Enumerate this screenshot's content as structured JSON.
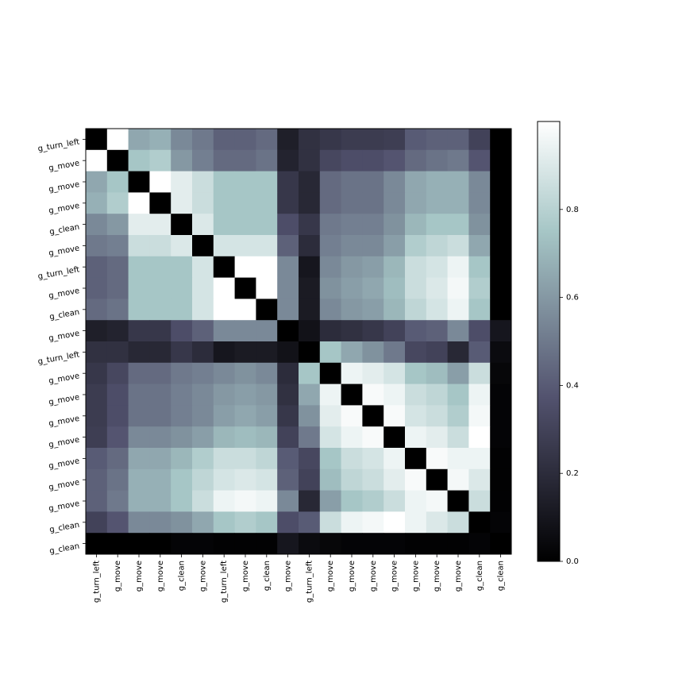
{
  "chart_data": {
    "type": "heatmap",
    "title": "",
    "xlabel": "",
    "ylabel": "",
    "colormap": "bone",
    "colorbar": {
      "min": 0.0,
      "max": 1.0,
      "ticks": [
        0.0,
        0.2,
        0.4,
        0.6,
        0.8
      ],
      "tick_labels": [
        "0.0",
        "0.2",
        "0.4",
        "0.6",
        "0.8"
      ]
    },
    "row_labels": [
      "g_turn_left",
      "g_move",
      "g_move",
      "g_move",
      "g_clean",
      "g_move",
      "g_turn_left",
      "g_move",
      "g_clean",
      "g_move",
      "g_turn_left",
      "g_move",
      "g_move",
      "g_move",
      "g_move",
      "g_move",
      "g_move",
      "g_move",
      "g_clean",
      "g_clean"
    ],
    "col_labels": [
      "g_turn_left",
      "g_move",
      "g_move",
      "g_move",
      "g_clean",
      "g_move",
      "g_turn_left",
      "g_move",
      "g_clean",
      "g_move",
      "g_turn_left",
      "g_move",
      "g_move",
      "g_move",
      "g_move",
      "g_move",
      "g_move",
      "g_move",
      "g_clean",
      "g_clean"
    ],
    "values": [
      [
        0.0,
        1.0,
        0.65,
        0.68,
        0.55,
        0.5,
        0.42,
        0.42,
        0.45,
        0.14,
        0.22,
        0.25,
        0.27,
        0.27,
        0.28,
        0.4,
        0.42,
        0.42,
        0.3,
        0.0
      ],
      [
        1.0,
        0.0,
        0.75,
        0.78,
        0.6,
        0.52,
        0.45,
        0.45,
        0.48,
        0.16,
        0.22,
        0.32,
        0.35,
        0.35,
        0.38,
        0.45,
        0.48,
        0.5,
        0.38,
        0.0
      ],
      [
        0.65,
        0.75,
        0.0,
        1.0,
        0.92,
        0.85,
        0.75,
        0.75,
        0.75,
        0.25,
        0.18,
        0.45,
        0.48,
        0.48,
        0.55,
        0.65,
        0.68,
        0.68,
        0.55,
        0.0
      ],
      [
        0.68,
        0.78,
        1.0,
        0.0,
        0.92,
        0.85,
        0.75,
        0.75,
        0.75,
        0.25,
        0.18,
        0.45,
        0.48,
        0.48,
        0.55,
        0.65,
        0.68,
        0.68,
        0.55,
        0.0
      ],
      [
        0.55,
        0.6,
        0.92,
        0.92,
        0.0,
        0.9,
        0.75,
        0.75,
        0.75,
        0.35,
        0.25,
        0.5,
        0.52,
        0.52,
        0.58,
        0.7,
        0.75,
        0.75,
        0.58,
        0.0
      ],
      [
        0.5,
        0.52,
        0.85,
        0.85,
        0.9,
        0.0,
        0.88,
        0.88,
        0.88,
        0.42,
        0.2,
        0.52,
        0.55,
        0.55,
        0.62,
        0.78,
        0.82,
        0.85,
        0.65,
        0.0
      ],
      [
        0.42,
        0.45,
        0.75,
        0.75,
        0.75,
        0.88,
        0.0,
        1.0,
        1.0,
        0.55,
        0.1,
        0.55,
        0.6,
        0.62,
        0.7,
        0.85,
        0.88,
        0.95,
        0.75,
        0.0
      ],
      [
        0.42,
        0.45,
        0.75,
        0.75,
        0.75,
        0.88,
        1.0,
        0.0,
        1.0,
        0.55,
        0.12,
        0.58,
        0.62,
        0.65,
        0.72,
        0.85,
        0.9,
        0.97,
        0.78,
        0.0
      ],
      [
        0.45,
        0.48,
        0.75,
        0.75,
        0.75,
        0.88,
        1.0,
        1.0,
        0.0,
        0.55,
        0.12,
        0.55,
        0.6,
        0.62,
        0.7,
        0.82,
        0.88,
        0.95,
        0.75,
        0.0
      ],
      [
        0.14,
        0.16,
        0.25,
        0.25,
        0.35,
        0.42,
        0.55,
        0.55,
        0.55,
        0.0,
        0.08,
        0.2,
        0.22,
        0.25,
        0.3,
        0.4,
        0.42,
        0.55,
        0.35,
        0.1
      ],
      [
        0.22,
        0.22,
        0.18,
        0.18,
        0.25,
        0.2,
        0.1,
        0.12,
        0.12,
        0.08,
        0.0,
        0.75,
        0.65,
        0.58,
        0.5,
        0.32,
        0.3,
        0.18,
        0.4,
        0.05
      ],
      [
        0.25,
        0.32,
        0.45,
        0.45,
        0.5,
        0.52,
        0.55,
        0.58,
        0.55,
        0.2,
        0.75,
        0.0,
        0.95,
        0.92,
        0.88,
        0.75,
        0.72,
        0.62,
        0.85,
        0.03
      ],
      [
        0.27,
        0.35,
        0.48,
        0.48,
        0.52,
        0.55,
        0.6,
        0.62,
        0.6,
        0.22,
        0.65,
        0.95,
        0.0,
        0.98,
        0.95,
        0.85,
        0.82,
        0.75,
        0.95,
        0.02
      ],
      [
        0.27,
        0.35,
        0.48,
        0.48,
        0.52,
        0.55,
        0.62,
        0.65,
        0.62,
        0.25,
        0.58,
        0.92,
        0.98,
        0.0,
        0.98,
        0.88,
        0.85,
        0.78,
        0.97,
        0.02
      ],
      [
        0.28,
        0.38,
        0.55,
        0.55,
        0.58,
        0.62,
        0.7,
        0.72,
        0.7,
        0.3,
        0.5,
        0.88,
        0.95,
        0.98,
        0.0,
        0.95,
        0.92,
        0.85,
        1.0,
        0.02
      ],
      [
        0.4,
        0.45,
        0.65,
        0.65,
        0.7,
        0.78,
        0.85,
        0.85,
        0.82,
        0.4,
        0.32,
        0.75,
        0.85,
        0.88,
        0.95,
        0.0,
        0.98,
        0.95,
        0.95,
        0.01
      ],
      [
        0.42,
        0.48,
        0.68,
        0.68,
        0.75,
        0.82,
        0.88,
        0.9,
        0.88,
        0.42,
        0.3,
        0.72,
        0.82,
        0.85,
        0.92,
        0.98,
        0.0,
        0.97,
        0.9,
        0.01
      ],
      [
        0.42,
        0.5,
        0.68,
        0.68,
        0.75,
        0.85,
        0.95,
        0.97,
        0.95,
        0.55,
        0.18,
        0.62,
        0.75,
        0.78,
        0.85,
        0.95,
        0.97,
        0.0,
        0.85,
        0.01
      ],
      [
        0.3,
        0.38,
        0.55,
        0.55,
        0.58,
        0.65,
        0.75,
        0.78,
        0.75,
        0.35,
        0.4,
        0.85,
        0.95,
        0.97,
        1.0,
        0.95,
        0.9,
        0.85,
        0.0,
        0.02
      ],
      [
        0.0,
        0.0,
        0.0,
        0.0,
        0.02,
        0.02,
        0.01,
        0.01,
        0.01,
        0.1,
        0.05,
        0.03,
        0.02,
        0.02,
        0.02,
        0.01,
        0.01,
        0.01,
        0.02,
        0.0
      ]
    ]
  }
}
